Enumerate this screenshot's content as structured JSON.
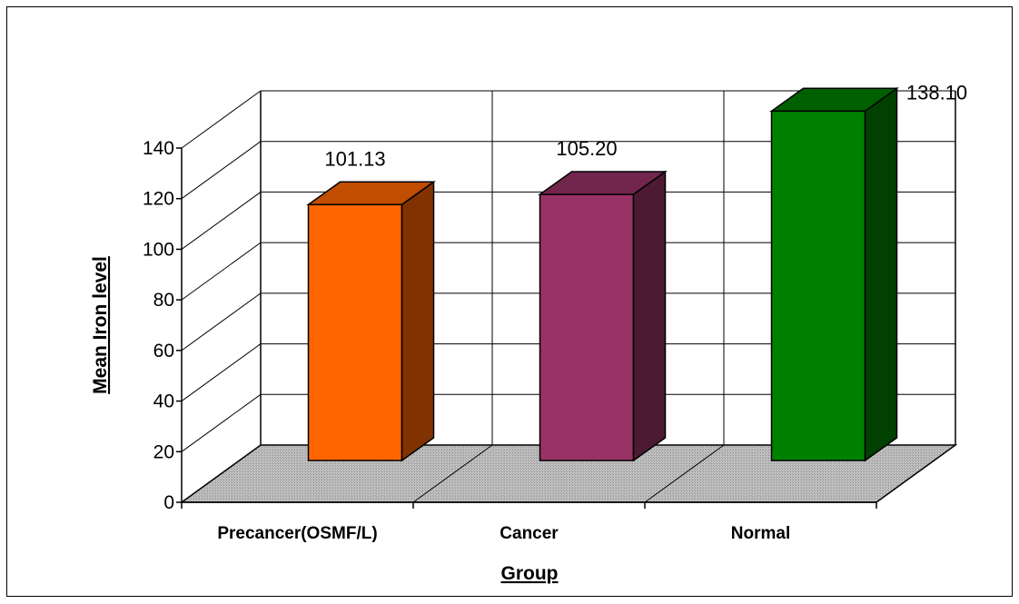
{
  "chart_data": {
    "type": "bar",
    "categories": [
      "Precancer(OSMF/L)",
      "Cancer",
      "Normal"
    ],
    "values": [
      101.13,
      105.2,
      138.1
    ],
    "value_labels": [
      "101.13",
      "105.20",
      "138.10"
    ],
    "xlabel": "Group",
    "ylabel": "Mean Iron level",
    "ylim": [
      0,
      140
    ],
    "yticks": [
      "0",
      "20",
      "40",
      "60",
      "80",
      "100",
      "120",
      "140"
    ],
    "grid": true,
    "style": "3d",
    "colors": {
      "bars_front": [
        "#ff6600",
        "#993366",
        "#008000"
      ],
      "bars_side": [
        "#803300",
        "#4d1a33",
        "#004000"
      ],
      "bars_top": [
        "#c04d00",
        "#73264d",
        "#006000"
      ],
      "floor": "#c0c0c0"
    }
  }
}
